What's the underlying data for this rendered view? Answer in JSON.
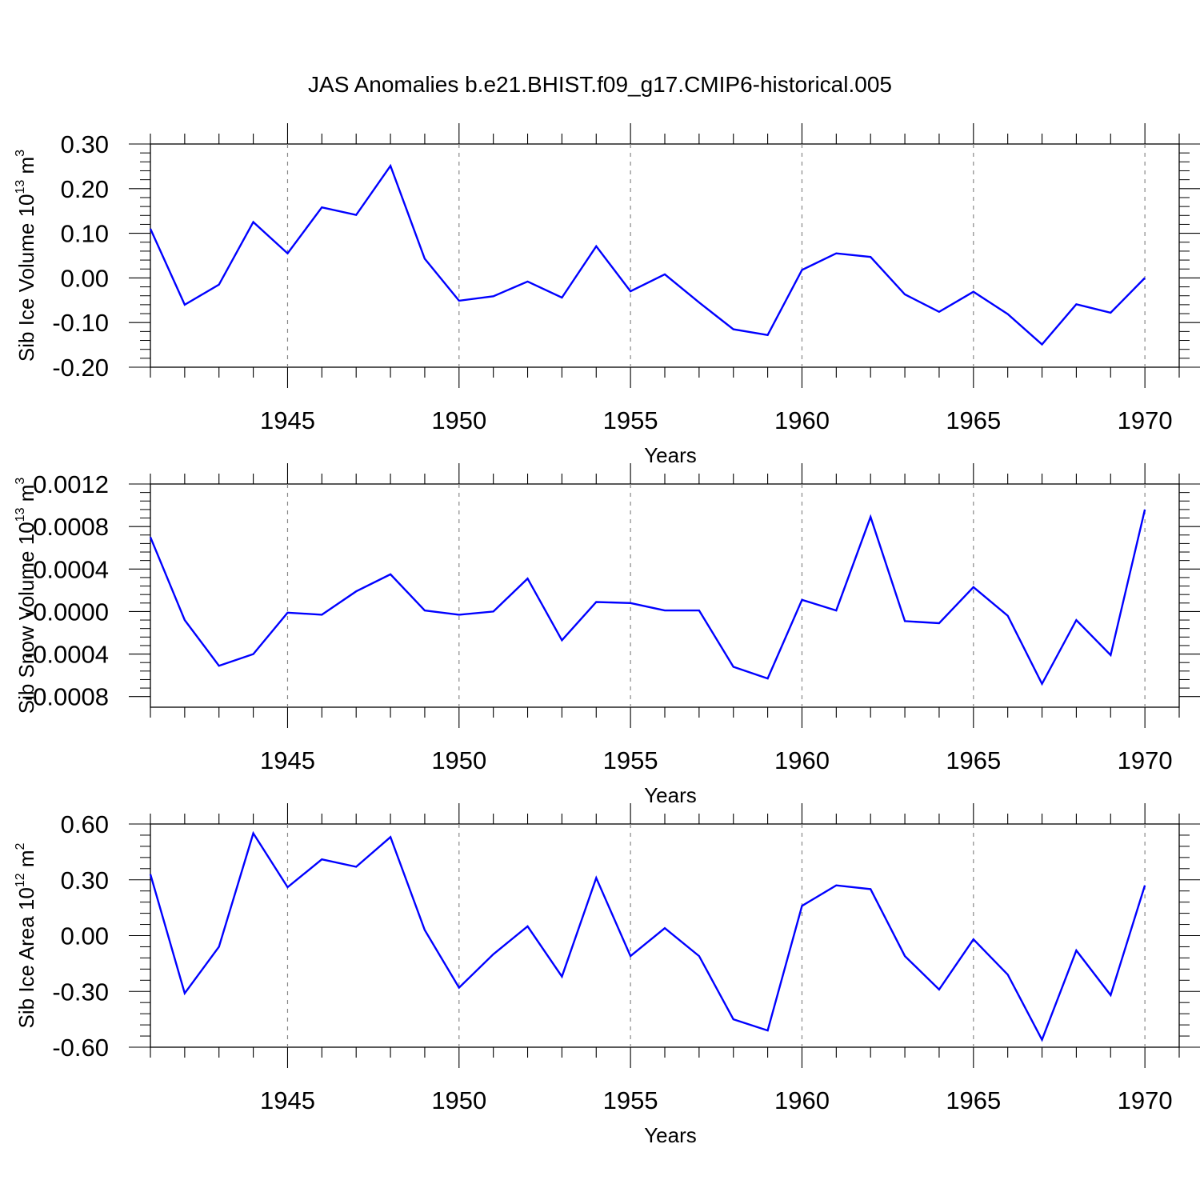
{
  "title": "JAS Anomalies b.e21.BHIST.f09_g17.CMIP6-historical.005",
  "line_color": "#0000ff",
  "chart_data": [
    {
      "type": "line",
      "ylabel_main": "Sib Ice Volume 10",
      "ylabel_exp": "13",
      "ylabel_unit": " m",
      "ylabel_unit_exp": "3",
      "xlabel": "Years",
      "xlim": [
        1941,
        1971
      ],
      "ylim": [
        -0.2,
        0.3
      ],
      "yticks": [
        -0.2,
        -0.1,
        0.0,
        0.1,
        0.2,
        0.3
      ],
      "ytick_labels": [
        "-0.20",
        "-0.10",
        "0.00",
        "0.10",
        "0.20",
        "0.30"
      ],
      "xticks": [
        1945,
        1950,
        1955,
        1960,
        1965,
        1970
      ],
      "xtick_labels": [
        "1945",
        "1950",
        "1955",
        "1960",
        "1965",
        "1970"
      ],
      "x": [
        1941,
        1942,
        1943,
        1944,
        1945,
        1946,
        1947,
        1948,
        1949,
        1950,
        1951,
        1952,
        1953,
        1954,
        1955,
        1956,
        1957,
        1958,
        1959,
        1960,
        1961,
        1962,
        1963,
        1964,
        1965,
        1966,
        1967,
        1968,
        1969,
        1970
      ],
      "values": [
        0.11,
        -0.06,
        -0.015,
        0.125,
        0.055,
        0.158,
        0.141,
        0.251,
        0.043,
        -0.051,
        -0.041,
        -0.008,
        -0.044,
        0.071,
        -0.03,
        0.008,
        -0.055,
        -0.115,
        -0.128,
        0.018,
        0.055,
        0.047,
        -0.037,
        -0.076,
        -0.031,
        -0.081,
        -0.149,
        -0.059,
        -0.078,
        0.0
      ]
    },
    {
      "type": "line",
      "ylabel_main": "Sib Snow Volume 10",
      "ylabel_exp": "13",
      "ylabel_unit": " m",
      "ylabel_unit_exp": "3",
      "xlabel": "Years",
      "xlim": [
        1941,
        1971
      ],
      "ylim": [
        -0.0009,
        0.0012
      ],
      "yticks": [
        -0.0008,
        -0.0004,
        0.0,
        0.0004,
        0.0008,
        0.0012
      ],
      "ytick_labels": [
        "-0.0008",
        "-0.0004",
        "-0.0000",
        "0.0004",
        "0.0008",
        "0.0012"
      ],
      "xticks": [
        1945,
        1950,
        1955,
        1960,
        1965,
        1970
      ],
      "xtick_labels": [
        "1945",
        "1950",
        "1955",
        "1960",
        "1965",
        "1970"
      ],
      "x": [
        1941,
        1942,
        1943,
        1944,
        1945,
        1946,
        1947,
        1948,
        1949,
        1950,
        1951,
        1952,
        1953,
        1954,
        1955,
        1956,
        1957,
        1958,
        1959,
        1960,
        1961,
        1962,
        1963,
        1964,
        1965,
        1966,
        1967,
        1968,
        1969,
        1970
      ],
      "values": [
        0.0007,
        -8e-05,
        -0.00051,
        -0.0004,
        -1e-05,
        -3e-05,
        0.00019,
        0.00035,
        1e-05,
        -3e-05,
        0.0,
        0.00031,
        -0.00027,
        9e-05,
        8e-05,
        1e-05,
        1e-05,
        -0.00052,
        -0.00063,
        0.00011,
        1e-05,
        0.00089,
        -9e-05,
        -0.00011,
        0.00023,
        -4e-05,
        -0.00068,
        -8e-05,
        -0.00041,
        0.00096
      ]
    },
    {
      "type": "line",
      "ylabel_main": "Sib Ice Area 10",
      "ylabel_exp": "12",
      "ylabel_unit": " m",
      "ylabel_unit_exp": "2",
      "xlabel": "Years",
      "xlim": [
        1941,
        1971
      ],
      "ylim": [
        -0.6,
        0.6
      ],
      "yticks": [
        -0.6,
        -0.3,
        0.0,
        0.3,
        0.6
      ],
      "ytick_labels": [
        "-0.60",
        "-0.30",
        "0.00",
        "0.30",
        "0.60"
      ],
      "xticks": [
        1945,
        1950,
        1955,
        1960,
        1965,
        1970
      ],
      "xtick_labels": [
        "1945",
        "1950",
        "1955",
        "1960",
        "1965",
        "1970"
      ],
      "x": [
        1941,
        1942,
        1943,
        1944,
        1945,
        1946,
        1947,
        1948,
        1949,
        1950,
        1951,
        1952,
        1953,
        1954,
        1955,
        1956,
        1957,
        1958,
        1959,
        1960,
        1961,
        1962,
        1963,
        1964,
        1965,
        1966,
        1967,
        1968,
        1969,
        1970
      ],
      "values": [
        0.33,
        -0.31,
        -0.06,
        0.55,
        0.26,
        0.41,
        0.37,
        0.53,
        0.03,
        -0.28,
        -0.1,
        0.05,
        -0.22,
        0.31,
        -0.11,
        0.04,
        -0.11,
        -0.45,
        -0.51,
        0.16,
        0.27,
        0.25,
        -0.11,
        -0.29,
        -0.02,
        -0.21,
        -0.56,
        -0.08,
        -0.32,
        0.27
      ]
    }
  ]
}
